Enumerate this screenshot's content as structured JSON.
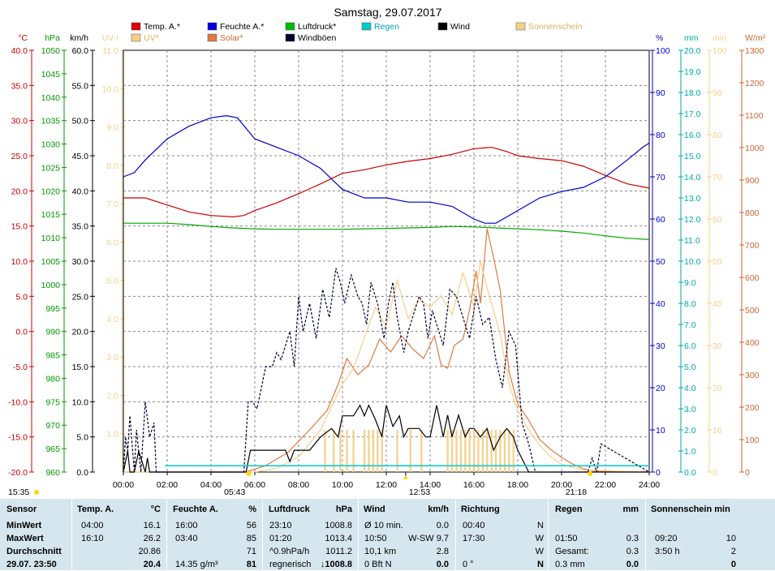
{
  "chart_data": {
    "type": "line",
    "title": "Samstag, 29.07.2017",
    "x_ticks": [
      "00:00",
      "02:00",
      "04:00",
      "06:00",
      "08:00",
      "10:00",
      "12:00",
      "14:00",
      "16:00",
      "18:00",
      "20:00",
      "22:00",
      "24:00"
    ],
    "axes": {
      "temp": {
        "unit": "°C",
        "color": "#cc0000",
        "min": -20,
        "max": 40,
        "ticks": [
          "40.0",
          "35.0",
          "30.0",
          "25.0",
          "20.0",
          "15.0",
          "10.0",
          "5.0",
          "0.0",
          "-5.0",
          "-10.0",
          "-15.0",
          "-20.0"
        ]
      },
      "press": {
        "unit": "hPa",
        "color": "#009900",
        "min": 960,
        "max": 1050,
        "ticks": [
          "1050",
          "1045",
          "1040",
          "1035",
          "1030",
          "1025",
          "1020",
          "1015",
          "1010",
          "1005",
          "1000",
          "995",
          "990",
          "985",
          "980",
          "975",
          "970",
          "965",
          "960"
        ]
      },
      "wind": {
        "unit": "km/h",
        "color": "#000000",
        "min": 0,
        "max": 60,
        "ticks": [
          "60.0",
          "55.0",
          "50.0",
          "45.0",
          "40.0",
          "35.0",
          "30.0",
          "25.0",
          "20.0",
          "15.0",
          "10.0",
          "5.0",
          "0.0"
        ]
      },
      "uv": {
        "unit": "UV-I",
        "color": "#f5d08a",
        "min": 0,
        "max": 11,
        "ticks": [
          "11.0",
          "10.0",
          "9.0",
          "8.0",
          "7.0",
          "6.0",
          "5.0",
          "4.0",
          "3.0",
          "2.0",
          "1.0"
        ]
      },
      "hum": {
        "unit": "%",
        "color": "#0000cc",
        "min": 0,
        "max": 100,
        "ticks": [
          "100",
          "90",
          "80",
          "70",
          "60",
          "50",
          "40",
          "30",
          "20",
          "10",
          "0"
        ]
      },
      "rain": {
        "unit": "mm",
        "color": "#00aaaa",
        "min": 0,
        "max": 20,
        "ticks": [
          "20.0",
          "19.0",
          "18.0",
          "17.0",
          "16.0",
          "15.0",
          "14.0",
          "13.0",
          "12.0",
          "11.0",
          "10.0",
          "9.0",
          "8.0",
          "7.0",
          "6.0",
          "5.0",
          "4.0",
          "3.0",
          "2.0",
          "1.0",
          "0.0"
        ]
      },
      "sunmin": {
        "unit": "min",
        "color": "#f5d08a",
        "min": 0,
        "max": 100,
        "ticks": [
          "100",
          "90",
          "80",
          "70",
          "60",
          "50",
          "40",
          "30",
          "20",
          "10",
          "0"
        ]
      },
      "solar": {
        "unit": "W/m²",
        "color": "#cc6633",
        "min": 0,
        "max": 1300,
        "ticks": [
          "1300",
          "1200",
          "1100",
          "1000",
          "900",
          "800",
          "700",
          "600",
          "500",
          "400",
          "300",
          "200",
          "100",
          "0"
        ]
      }
    },
    "legend": [
      {
        "label": "Temp. A.*",
        "color": "#dd0000"
      },
      {
        "label": "Feuchte A.*",
        "color": "#0000dd"
      },
      {
        "label": "Luftdruck*",
        "color": "#00bb00"
      },
      {
        "label": "Regen",
        "color": "#00cccc"
      },
      {
        "label": "Wind",
        "color": "#000000"
      },
      {
        "label": "Sonnenschein",
        "color": "#f5d08a"
      },
      {
        "label": "UV*",
        "color": "#f5d08a"
      },
      {
        "label": "Solar*",
        "color": "#e07a40"
      },
      {
        "label": "Windböen",
        "color": "#000033"
      }
    ],
    "series": [
      {
        "name": "Temp. A.*",
        "axis": "temp",
        "color": "#cc0000",
        "x": [
          0,
          1,
          2,
          3,
          4,
          5,
          5.5,
          6,
          7,
          8,
          9,
          10,
          11,
          12,
          13,
          14,
          15,
          16,
          16.8,
          17.5,
          18,
          19,
          20,
          21,
          22,
          23,
          24
        ],
        "y": [
          19,
          19,
          18,
          17,
          16.5,
          16.3,
          16.5,
          17.2,
          18.3,
          19.6,
          21,
          22.5,
          23,
          23.7,
          24.2,
          24.6,
          25.2,
          26,
          26.2,
          25.6,
          25,
          24.6,
          24.3,
          23.5,
          22.2,
          21,
          20.4
        ]
      },
      {
        "name": "Feuchte A.*",
        "axis": "hum",
        "color": "#0000cc",
        "x": [
          0,
          0.5,
          1,
          2,
          3,
          4,
          4.7,
          5.2,
          6,
          7,
          8,
          9,
          10,
          11,
          12,
          13,
          14,
          15,
          16,
          16.5,
          17,
          18,
          19,
          20,
          21,
          22,
          23,
          23.7,
          24
        ],
        "y": [
          70,
          71,
          74,
          79,
          82,
          84,
          84.5,
          84,
          79,
          77,
          75,
          72,
          67,
          65,
          65,
          64,
          64,
          63,
          60,
          59,
          59,
          62,
          65,
          66.5,
          67.5,
          70,
          74,
          77,
          78
        ]
      },
      {
        "name": "Luftdruck*",
        "axis": "press",
        "color": "#00aa00",
        "x": [
          0,
          1,
          2,
          3,
          4,
          5,
          6,
          7,
          8,
          9,
          10,
          11,
          12,
          13,
          14,
          15,
          16,
          17,
          18,
          19,
          20,
          21,
          22,
          23,
          24
        ],
        "y": [
          1013.1,
          1013.1,
          1013.1,
          1012.8,
          1012.4,
          1012.1,
          1011.9,
          1011.8,
          1011.8,
          1011.8,
          1011.8,
          1011.9,
          1012.0,
          1012.1,
          1012.2,
          1012.4,
          1012.3,
          1012.1,
          1011.9,
          1011.7,
          1011.4,
          1011.0,
          1010.4,
          1009.9,
          1009.6
        ]
      },
      {
        "name": "Solar*",
        "axis": "solar",
        "color": "#e07a40",
        "x": [
          0,
          5.6,
          6.5,
          7.5,
          8.5,
          9.3,
          9.8,
          10.2,
          10.7,
          11.2,
          11.7,
          12.2,
          12.7,
          13.2,
          13.7,
          14.2,
          14.5,
          14.8,
          15.1,
          15.5,
          15.8,
          16.1,
          16.3,
          16.6,
          16.9,
          17.2,
          17.6,
          18.0,
          18.5,
          19.0,
          19.5,
          20.0,
          20.5,
          21.0,
          21.5,
          24
        ],
        "y": [
          0,
          0,
          20,
          60,
          130,
          190,
          270,
          350,
          300,
          330,
          410,
          370,
          420,
          380,
          350,
          420,
          330,
          320,
          390,
          410,
          500,
          620,
          520,
          750,
          660,
          560,
          310,
          210,
          160,
          100,
          70,
          45,
          25,
          10,
          3,
          0
        ]
      },
      {
        "name": "UV*",
        "axis": "uv",
        "color": "#f5d08a",
        "x": [
          0,
          6,
          7,
          8,
          9,
          10,
          10.5,
          11,
          11.5,
          12,
          12.5,
          13,
          13.5,
          14,
          14.5,
          15,
          15.5,
          16,
          16.3,
          16.6,
          16.9,
          17.2,
          17.6,
          18,
          18.5,
          19,
          19.5,
          20,
          21,
          24
        ],
        "y": [
          0,
          0,
          0.1,
          0.4,
          1.1,
          2.3,
          2.7,
          3.5,
          4.3,
          3.8,
          5.0,
          4.0,
          4.5,
          4.3,
          4.6,
          4.1,
          5.2,
          4.3,
          5.5,
          4.8,
          4.2,
          3.6,
          2.3,
          1.6,
          1.1,
          0.7,
          0.4,
          0.2,
          0.05,
          0
        ]
      },
      {
        "name": "Wind",
        "axis": "wind",
        "color": "#000000",
        "x": [
          0,
          0.2,
          0.3,
          0.5,
          0.7,
          0.9,
          1.0,
          1.1,
          1.2,
          1.4,
          1.5,
          5.6,
          5.8,
          6.0,
          6.4,
          6.6,
          7.0,
          7.2,
          7.4,
          7.6,
          7.8,
          8.0,
          8.5,
          9.0,
          9.5,
          9.8,
          10.0,
          10.5,
          10.8,
          11.0,
          11.2,
          11.5,
          11.8,
          12.0,
          12.3,
          12.6,
          12.8,
          13.0,
          13.5,
          13.8,
          14.0,
          14.3,
          14.6,
          14.8,
          15.0,
          15.3,
          15.6,
          15.8,
          16.0,
          16.3,
          16.6,
          16.9,
          17.2,
          17.5,
          17.8,
          18.0,
          18.5,
          24
        ],
        "y": [
          0,
          3,
          0,
          0,
          3,
          1,
          0,
          2,
          0,
          0,
          0,
          0,
          3.1,
          3.1,
          3.1,
          3.1,
          3.1,
          3.1,
          3.1,
          1.5,
          3.1,
          3.1,
          3.1,
          5,
          6.2,
          5,
          8,
          8,
          9.5,
          8,
          9.5,
          7.5,
          5,
          9.5,
          6.5,
          8,
          5,
          6.2,
          6.2,
          5,
          5,
          9.5,
          5,
          8.1,
          5,
          8.1,
          5,
          6.2,
          6.2,
          5,
          6.2,
          3.1,
          5,
          6.2,
          5,
          3.1,
          0,
          0
        ]
      },
      {
        "name": "Windböen",
        "axis": "wind",
        "color": "#000033",
        "dashed": true,
        "x": [
          0,
          0.1,
          0.2,
          0.3,
          0.5,
          0.6,
          0.8,
          1.0,
          1.2,
          1.4,
          1.5,
          5.5,
          5.7,
          5.9,
          6.1,
          6.3,
          6.5,
          6.8,
          7.0,
          7.2,
          7.4,
          7.6,
          7.8,
          8.0,
          8.2,
          8.5,
          8.8,
          9.1,
          9.4,
          9.7,
          9.9,
          10.1,
          10.4,
          10.7,
          10.9,
          11.1,
          11.3,
          11.6,
          11.9,
          12.1,
          12.3,
          12.5,
          12.8,
          13.0,
          13.3,
          13.5,
          13.7,
          13.9,
          14.1,
          14.3,
          14.6,
          14.9,
          15.2,
          15.5,
          15.8,
          16.1,
          16.4,
          16.7,
          17.0,
          17.3,
          17.6,
          17.9,
          18.2,
          18.5,
          18.8,
          19,
          21.2,
          21.4,
          21.6,
          21.8,
          24
        ],
        "y": [
          0,
          5,
          3,
          8,
          0,
          6,
          0,
          10,
          5,
          7,
          0,
          0,
          10,
          10,
          9,
          12,
          15,
          15,
          17,
          16,
          18,
          20,
          15,
          25,
          20,
          24,
          19,
          26,
          22,
          29,
          27,
          24,
          28,
          25,
          24,
          21,
          27,
          24,
          19,
          24,
          27,
          22,
          17,
          20,
          23,
          25,
          24,
          19,
          23,
          21,
          18,
          26,
          25,
          22,
          19,
          25,
          21,
          22,
          16,
          12,
          20,
          18,
          7,
          4,
          0,
          0,
          0,
          2,
          0,
          4,
          0
        ]
      }
    ],
    "rain_line": {
      "name": "Regen",
      "axis": "rain",
      "value": 0.3
    },
    "sunshine_bars_x": [
      9.2,
      9.6,
      9.9,
      10.2,
      10.5,
      11.0,
      11.2,
      11.4,
      11.6,
      11.8,
      12.5,
      13.1,
      13.6,
      14.8,
      15.0,
      15.2,
      15.4,
      15.6,
      15.8,
      16.0,
      16.2,
      16.4,
      16.6,
      16.8,
      17.0,
      17.2,
      17.4,
      17.6,
      17.8
    ],
    "sunshine_bar_minutes": 10,
    "markers": {
      "sunrise": "05:43",
      "sunset": "21:18",
      "noon": "12:53",
      "left_time": "15:35"
    }
  },
  "summary": {
    "headers": [
      "Sensor",
      "Temp. A.",
      "°C",
      "Feuchte A.",
      "%",
      "Luftdruck",
      "hPa",
      "Wind",
      "km/h",
      "Richtung",
      "Regen",
      "mm",
      "Sonnenschein min"
    ],
    "row_labels": [
      "MinWert",
      "MaxWert",
      "Durchschnitt",
      "29.07. 23:50"
    ],
    "temp": [
      [
        "04:00",
        "16.1"
      ],
      [
        "16:10",
        "26.2"
      ],
      [
        "",
        "20.86"
      ],
      [
        "",
        "20.4"
      ]
    ],
    "hum": [
      [
        "16:00",
        "56"
      ],
      [
        "03:40",
        "85"
      ],
      [
        "",
        "71"
      ],
      [
        "14.35 g/m³",
        "81"
      ]
    ],
    "press": [
      [
        "23:10",
        "1008.8"
      ],
      [
        "01:20",
        "1013.4"
      ],
      [
        "^0.9hPa/h",
        "1011.2"
      ],
      [
        "regnerisch",
        "↓1008.8"
      ]
    ],
    "wind": [
      [
        "Ø 10 min.",
        "0.0"
      ],
      [
        "10:50",
        "W-SW 9.7"
      ],
      [
        "10,1 km",
        "2.8"
      ],
      [
        "0 Bft N",
        "0.0"
      ]
    ],
    "dir": [
      [
        "00:40",
        "N"
      ],
      [
        "17:30",
        "W"
      ],
      [
        "",
        "W"
      ],
      [
        "0 °",
        "N"
      ]
    ],
    "rain": [
      [
        "",
        ""
      ],
      [
        "01:50",
        "0.3"
      ],
      [
        "Gesamt:",
        "0.3"
      ],
      [
        "0.3 mm",
        "0.0"
      ]
    ],
    "sun": [
      [
        "",
        ""
      ],
      [
        "09:20",
        "10"
      ],
      [
        "3:50 h",
        "2"
      ],
      [
        "",
        "0"
      ]
    ]
  }
}
